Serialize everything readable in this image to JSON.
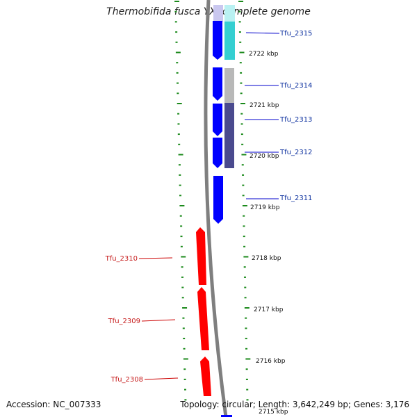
{
  "title": "Thermobifida fusca YX, complete genome",
  "footer": {
    "accession": "Accession: NC_007333",
    "summary": "Topology: circular; Length: 3,642,249 bp; Genes: 3,176"
  },
  "colors": {
    "forward_gene": "#0000ff",
    "reverse_gene": "#ff0000",
    "backbone": "#7f7f7f",
    "tick": "#1b8a1b",
    "blue_label": "#0b2f9e",
    "red_label": "#c61b1b",
    "cyan_feature": "#35cfd1",
    "gray_feature": "#b8b8b8",
    "navy_feature": "#4a4a8e",
    "lavender_feature": "#c9c7ef"
  },
  "scale_labels": [
    {
      "label": "2722 kbp"
    },
    {
      "label": "2721 kbp"
    },
    {
      "label": "2720 kbp"
    },
    {
      "label": "2719 kbp"
    },
    {
      "label": "2718 kbp"
    },
    {
      "label": "2717 kbp"
    },
    {
      "label": "2716 kbp"
    },
    {
      "label": "2715 kbp"
    }
  ],
  "genes": [
    {
      "name": "Tfu_2315",
      "strand": "+"
    },
    {
      "name": "Tfu_2314",
      "strand": "+"
    },
    {
      "name": "Tfu_2313",
      "strand": "+"
    },
    {
      "name": "Tfu_2312",
      "strand": "+"
    },
    {
      "name": "Tfu_2311",
      "strand": "+"
    },
    {
      "name": "Tfu_2310",
      "strand": "-"
    },
    {
      "name": "Tfu_2309",
      "strand": "-"
    },
    {
      "name": "Tfu_2308",
      "strand": "-"
    }
  ]
}
